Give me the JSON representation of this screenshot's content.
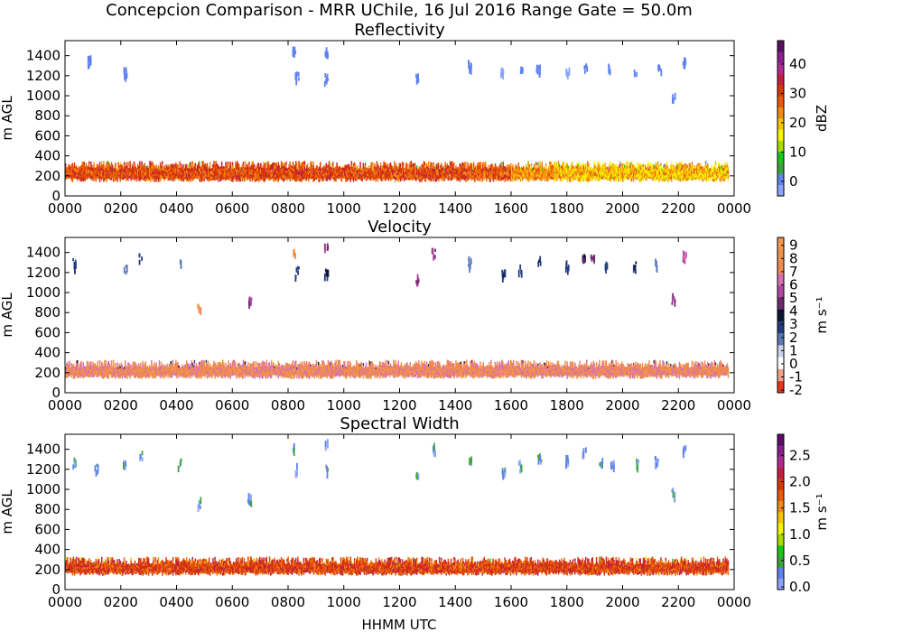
{
  "figure": {
    "suptitle": "Concepcion Comparison - MRR UChile, 16 Jul 2016 Range Gate = 50.0m",
    "xlabel": "HHMM UTC"
  },
  "chart_data": [
    {
      "type": "heatmap",
      "title": "Reflectivity",
      "ylabel": "m AGL",
      "xlabel": "",
      "colorbar_label": "dBZ",
      "colorbar_ticks": [
        "0",
        "10",
        "20",
        "30",
        "40"
      ],
      "colorbar_range": [
        -5,
        48
      ],
      "x_ticks": [
        "0000",
        "0200",
        "0400",
        "0600",
        "0800",
        "1000",
        "1200",
        "1400",
        "1600",
        "1800",
        "2000",
        "2200",
        "0000"
      ],
      "y_ticks": [
        "0",
        "200",
        "400",
        "600",
        "800",
        "1000",
        "1200",
        "1400"
      ],
      "xlim": [
        0,
        24
      ],
      "ylim": [
        0,
        1550
      ],
      "colormap": [
        "#8aa4ff",
        "#5f82f0",
        "#3aa53a",
        "#17c817",
        "#a8dd00",
        "#f7f400",
        "#f7c400",
        "#f48a18",
        "#e95b08",
        "#d93900",
        "#c1213e",
        "#b02a90",
        "#8a1f8f",
        "#5e0c66"
      ],
      "low_band": {
        "height_range_m": [
          140,
          350
        ],
        "segments": [
          {
            "hours": [
              0,
              14.5
            ],
            "dominant_dbZ": 29
          },
          {
            "hours": [
              14.5,
              16
            ],
            "dominant_dbZ": 28
          },
          {
            "hours": [
              16,
              17.5
            ],
            "dominant_dbZ": 24
          },
          {
            "hours": [
              17.5,
              23.8
            ],
            "dominant_dbZ": 20
          }
        ]
      },
      "upper_echoes": [
        {
          "hour": 0.85,
          "height_m": 1360,
          "value": 0
        },
        {
          "hour": 2.15,
          "height_m": 1260,
          "value": 0
        },
        {
          "hour": 8.2,
          "height_m": 1450,
          "value": 0
        },
        {
          "hour": 8.3,
          "height_m": 1220,
          "value": 0
        },
        {
          "hour": 9.35,
          "height_m": 1460,
          "value": 0
        },
        {
          "hour": 9.35,
          "height_m": 1190,
          "value": -1
        },
        {
          "hour": 12.6,
          "height_m": 1180,
          "value": 0
        },
        {
          "hour": 14.5,
          "height_m": 1320,
          "value": 1
        },
        {
          "hour": 15.65,
          "height_m": 1260,
          "value": -2
        },
        {
          "hour": 16.35,
          "height_m": 1270,
          "value": 0
        },
        {
          "hour": 16.95,
          "height_m": 1290,
          "value": 0
        },
        {
          "hour": 18.0,
          "height_m": 1240,
          "value": -2
        },
        {
          "hour": 18.65,
          "height_m": 1300,
          "value": 1
        },
        {
          "hour": 19.5,
          "height_m": 1310,
          "value": 2
        },
        {
          "hour": 20.45,
          "height_m": 1270,
          "value": 1
        },
        {
          "hour": 21.3,
          "height_m": 1300,
          "value": 1
        },
        {
          "hour": 21.8,
          "height_m": 1000,
          "value": 2
        },
        {
          "hour": 22.2,
          "height_m": 1350,
          "value": 2
        }
      ]
    },
    {
      "type": "heatmap",
      "title": "Velocity",
      "ylabel": "m AGL",
      "xlabel": "",
      "colorbar_label": "m s⁻¹",
      "colorbar_ticks": [
        "-2",
        "-1",
        "0",
        "1",
        "2",
        "3",
        "4",
        "5",
        "6",
        "7",
        "8",
        "9"
      ],
      "colorbar_range": [
        -2.2,
        9.6
      ],
      "x_ticks": [
        "0000",
        "0200",
        "0400",
        "0600",
        "0800",
        "1000",
        "1200",
        "1400",
        "1600",
        "1800",
        "2000",
        "2200",
        "0000"
      ],
      "y_ticks": [
        "0",
        "200",
        "400",
        "600",
        "800",
        "1000",
        "1200",
        "1400"
      ],
      "xlim": [
        0,
        24
      ],
      "ylim": [
        0,
        1550
      ],
      "colormap": [
        "#e8361a",
        "#f5a08a",
        "#ffffff",
        "#c8d4ee",
        "#5c7ab8",
        "#243c7e",
        "#0d1636",
        "#6a2c6e",
        "#b2479e",
        "#d670b4",
        "#f08a50",
        "#f29048",
        "#f5984a"
      ],
      "low_band": {
        "height_range_m": [
          140,
          330
        ],
        "segments": [
          {
            "hours": [
              0,
              23.8
            ],
            "dominant_ms": 7.5
          }
        ]
      },
      "upper_echoes": [
        {
          "hour": 0.3,
          "height_m": 1300,
          "value": 3
        },
        {
          "hour": 2.15,
          "height_m": 1260,
          "value": 2
        },
        {
          "hour": 2.7,
          "height_m": 1360,
          "value": 3
        },
        {
          "hour": 4.1,
          "height_m": 1300,
          "value": 2
        },
        {
          "hour": 4.8,
          "height_m": 880,
          "value": 8
        },
        {
          "hour": 6.6,
          "height_m": 930,
          "value": 5
        },
        {
          "hour": 8.2,
          "height_m": 1420,
          "value": 8
        },
        {
          "hour": 8.3,
          "height_m": 1220,
          "value": 3
        },
        {
          "hour": 9.35,
          "height_m": 1460,
          "value": 5
        },
        {
          "hour": 9.35,
          "height_m": 1200,
          "value": 3
        },
        {
          "hour": 12.6,
          "height_m": 1150,
          "value": 5
        },
        {
          "hour": 13.2,
          "height_m": 1410,
          "value": 5
        },
        {
          "hour": 14.5,
          "height_m": 1320,
          "value": 2
        },
        {
          "hour": 15.7,
          "height_m": 1200,
          "value": 3
        },
        {
          "hour": 16.3,
          "height_m": 1240,
          "value": 3
        },
        {
          "hour": 17.0,
          "height_m": 1340,
          "value": 3
        },
        {
          "hour": 18.0,
          "height_m": 1300,
          "value": 3
        },
        {
          "hour": 18.6,
          "height_m": 1350,
          "value": 4
        },
        {
          "hour": 18.9,
          "height_m": 1380,
          "value": 5
        },
        {
          "hour": 19.4,
          "height_m": 1300,
          "value": 3
        },
        {
          "hour": 20.4,
          "height_m": 1270,
          "value": 3
        },
        {
          "hour": 21.2,
          "height_m": 1300,
          "value": 2
        },
        {
          "hour": 21.8,
          "height_m": 950,
          "value": 5
        },
        {
          "hour": 22.2,
          "height_m": 1380,
          "value": 6
        }
      ]
    },
    {
      "type": "heatmap",
      "title": "Spectral Width",
      "ylabel": "m AGL",
      "xlabel": "HHMM UTC",
      "colorbar_label": "m s⁻¹",
      "colorbar_ticks": [
        "0.0",
        "0.5",
        "1.0",
        "1.5",
        "2.0",
        "2.5"
      ],
      "colorbar_range": [
        -0.05,
        2.9
      ],
      "x_ticks": [
        "0000",
        "0200",
        "0400",
        "0600",
        "0800",
        "1000",
        "1200",
        "1400",
        "1600",
        "1800",
        "2000",
        "2200",
        "0000"
      ],
      "y_ticks": [
        "0",
        "200",
        "400",
        "600",
        "800",
        "1000",
        "1200",
        "1400"
      ],
      "xlim": [
        0,
        24
      ],
      "ylim": [
        0,
        1550
      ],
      "colormap": [
        "#8aa4ff",
        "#5f82f0",
        "#3aa53a",
        "#17c817",
        "#a8dd00",
        "#f7f400",
        "#f7c400",
        "#f48a18",
        "#e95b08",
        "#d93900",
        "#c1213e",
        "#b02a90",
        "#8a1f8f",
        "#5e0c66"
      ],
      "low_band": {
        "height_range_m": [
          140,
          330
        ],
        "segments": [
          {
            "hours": [
              0,
              23.8
            ],
            "dominant_ms": 1.9
          }
        ]
      },
      "upper_echoes": [
        {
          "hour": 0.3,
          "height_m": 1280,
          "value": 0.3
        },
        {
          "hour": 1.1,
          "height_m": 1230,
          "value": 0.3
        },
        {
          "hour": 2.1,
          "height_m": 1260,
          "value": 0.2
        },
        {
          "hour": 2.7,
          "height_m": 1360,
          "value": 0.3
        },
        {
          "hour": 4.1,
          "height_m": 1280,
          "value": 0.3
        },
        {
          "hour": 4.8,
          "height_m": 880,
          "value": 0.3
        },
        {
          "hour": 6.6,
          "height_m": 930,
          "value": 0.3
        },
        {
          "hour": 8.2,
          "height_m": 1440,
          "value": 0.3
        },
        {
          "hour": 8.3,
          "height_m": 1220,
          "value": 0.3
        },
        {
          "hour": 9.35,
          "height_m": 1460,
          "value": 0.2
        },
        {
          "hour": 9.35,
          "height_m": 1210,
          "value": 0.2
        },
        {
          "hour": 12.6,
          "height_m": 1140,
          "value": 0.3
        },
        {
          "hour": 13.2,
          "height_m": 1420,
          "value": 0.3
        },
        {
          "hour": 14.5,
          "height_m": 1320,
          "value": 0.3
        },
        {
          "hour": 15.7,
          "height_m": 1210,
          "value": 0.3
        },
        {
          "hour": 16.3,
          "height_m": 1250,
          "value": 0.3
        },
        {
          "hour": 17.0,
          "height_m": 1330,
          "value": 0.3
        },
        {
          "hour": 18.0,
          "height_m": 1300,
          "value": 0.3
        },
        {
          "hour": 18.6,
          "height_m": 1390,
          "value": 0.3
        },
        {
          "hour": 19.2,
          "height_m": 1280,
          "value": 0.3
        },
        {
          "hour": 19.6,
          "height_m": 1260,
          "value": 0.3
        },
        {
          "hour": 20.5,
          "height_m": 1270,
          "value": 0.3
        },
        {
          "hour": 21.2,
          "height_m": 1300,
          "value": 0.3
        },
        {
          "hour": 21.8,
          "height_m": 980,
          "value": 0.3
        },
        {
          "hour": 22.2,
          "height_m": 1420,
          "value": 0.3
        }
      ]
    }
  ]
}
